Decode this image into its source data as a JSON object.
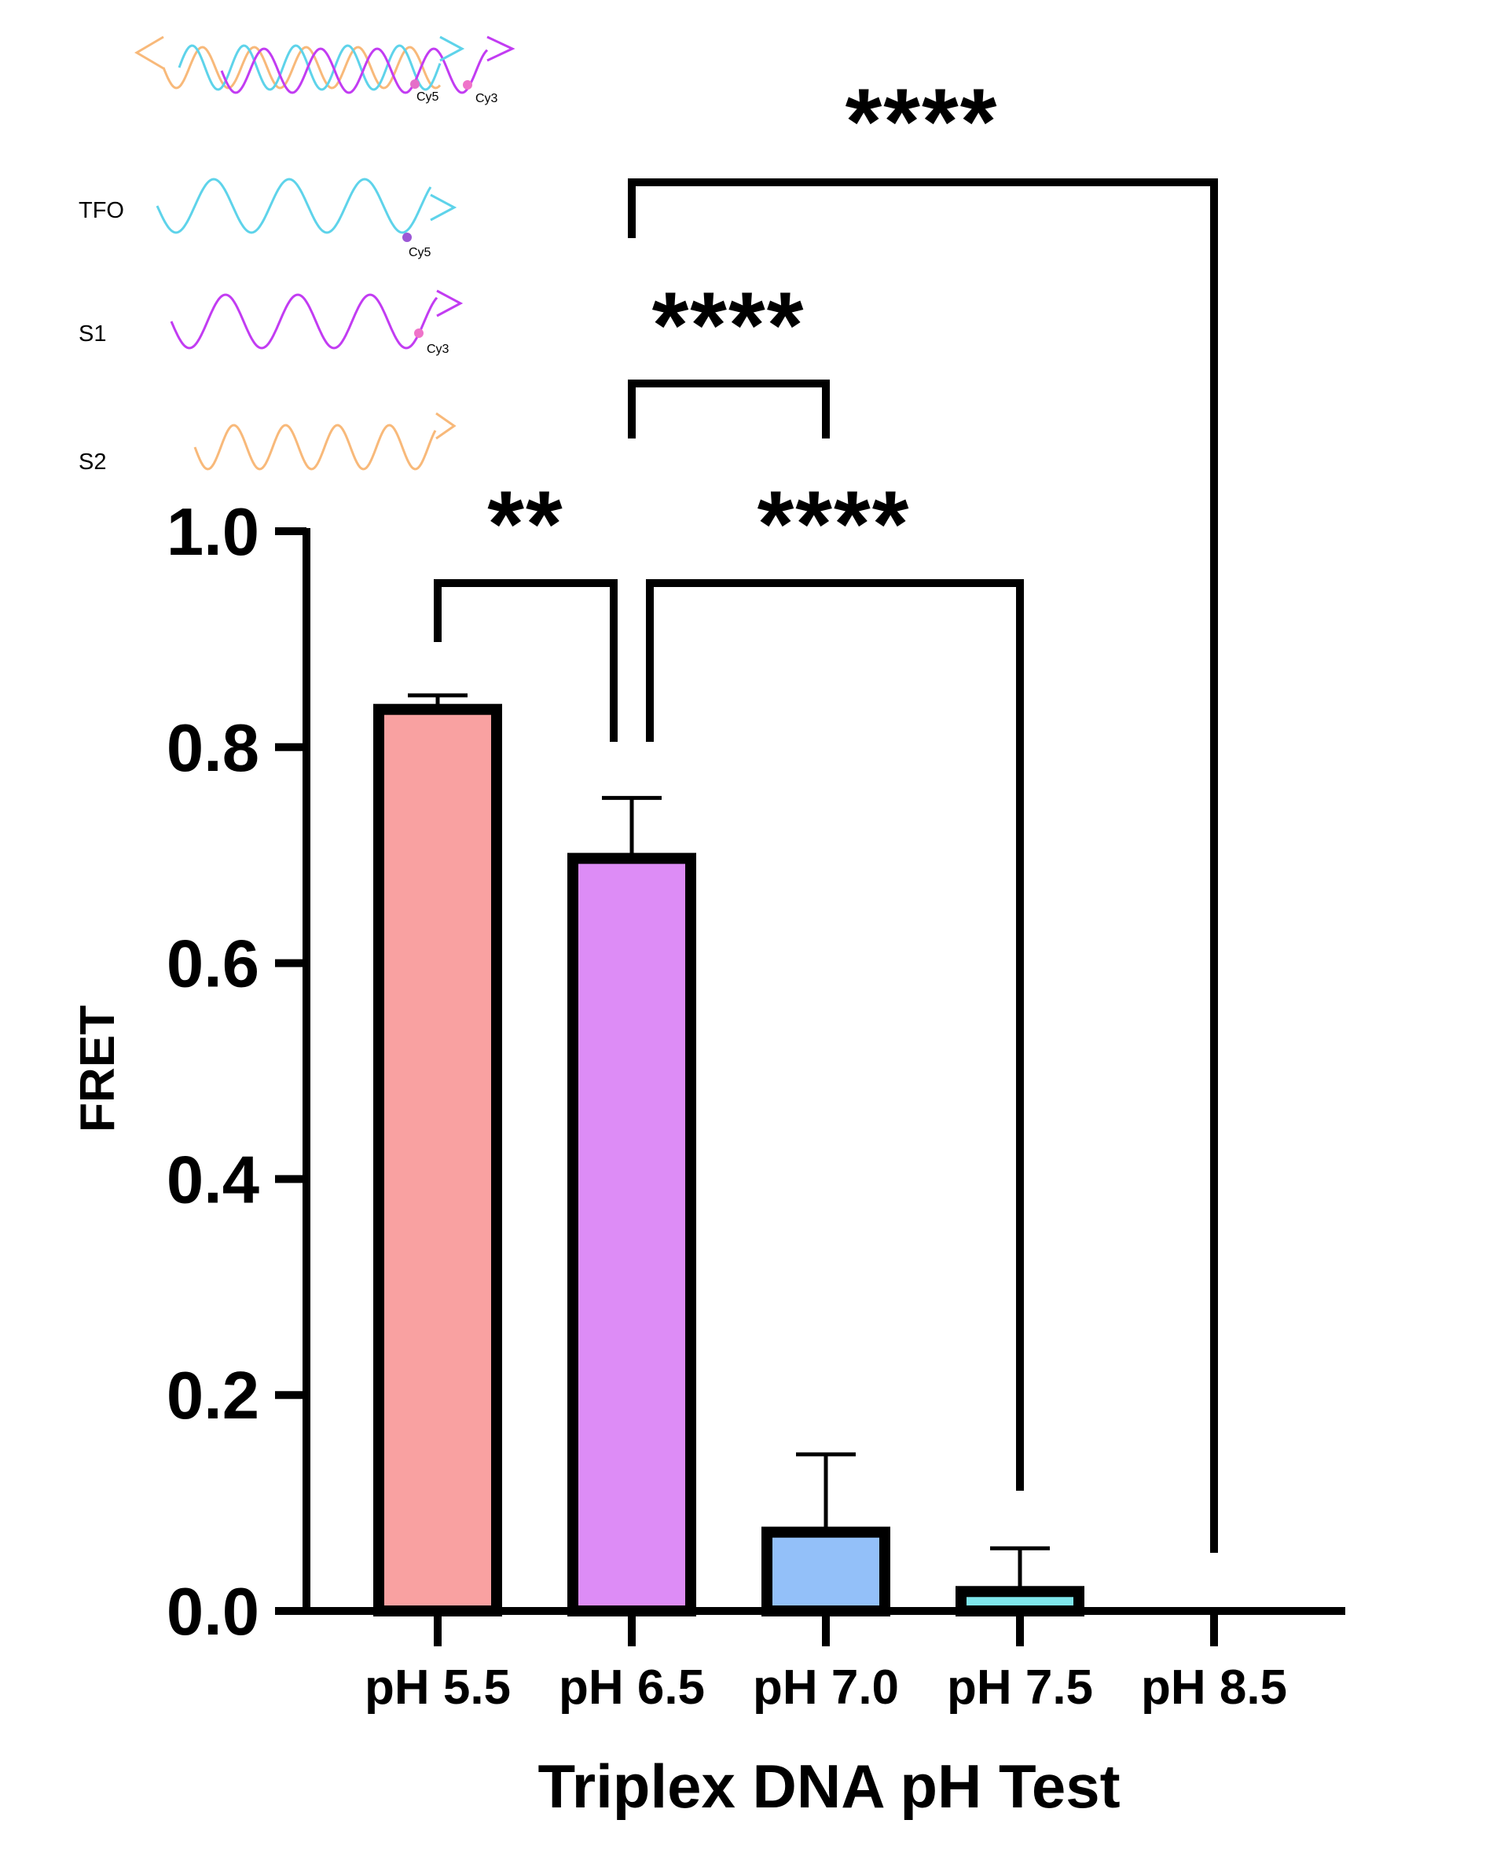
{
  "chart_data": {
    "type": "bar",
    "title": "",
    "xlabel": "Triplex DNA pH Test",
    "ylabel": "FRET",
    "ylim": [
      0,
      1.0
    ],
    "yticks": [
      "0.0",
      "0.2",
      "0.4",
      "0.6",
      "0.8",
      "1.0"
    ],
    "categories": [
      "pH 5.5",
      "pH 6.5",
      "pH 7.0",
      "pH 7.5",
      "pH 8.5"
    ],
    "values": [
      0.835,
      0.697,
      0.073,
      0.018,
      0.0
    ],
    "errors": [
      0.013,
      0.056,
      0.072,
      0.04,
      0.0
    ],
    "colors": [
      "#f9a1a1",
      "#dd8cf6",
      "#93c0f9",
      "#7fe6ec",
      "#ffffff"
    ],
    "significance": [
      {
        "from": 0,
        "to": 1,
        "label": "**"
      },
      {
        "from": 1,
        "to": 3,
        "label": "****"
      },
      {
        "from": 1,
        "to": 2,
        "label": "****"
      },
      {
        "from": 1,
        "to": 4,
        "label": "****"
      }
    ],
    "legend": {
      "position": "top-left",
      "complex": {
        "dyes": [
          "Cy5",
          "Cy3"
        ]
      },
      "strands": [
        {
          "name": "TFO",
          "color": "#5ed3ea",
          "dye": "Cy5"
        },
        {
          "name": "S1",
          "color": "#c23cf2",
          "dye": "Cy3"
        },
        {
          "name": "S2",
          "color": "#f8b97a",
          "dye": ""
        }
      ]
    }
  }
}
